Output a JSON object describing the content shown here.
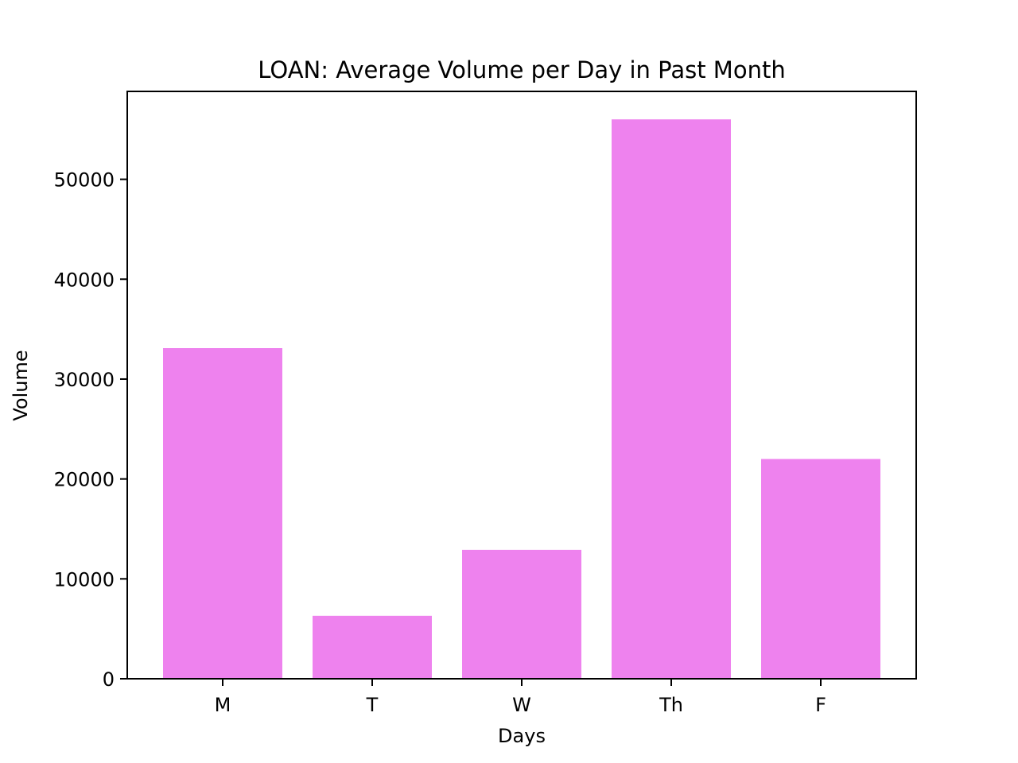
{
  "chart_data": {
    "type": "bar",
    "title": "LOAN: Average Volume per Day in Past Month",
    "xlabel": "Days",
    "ylabel": "Volume",
    "categories": [
      "M",
      "T",
      "W",
      "Th",
      "F"
    ],
    "values": [
      33100,
      6300,
      12900,
      56000,
      22000
    ],
    "ylim": [
      0,
      58800
    ],
    "yticks": [
      0,
      10000,
      20000,
      30000,
      40000,
      50000
    ],
    "ytick_labels": [
      "0",
      "10000",
      "20000",
      "30000",
      "40000",
      "50000"
    ],
    "grid": false,
    "bar_color": "#ee82ee"
  }
}
